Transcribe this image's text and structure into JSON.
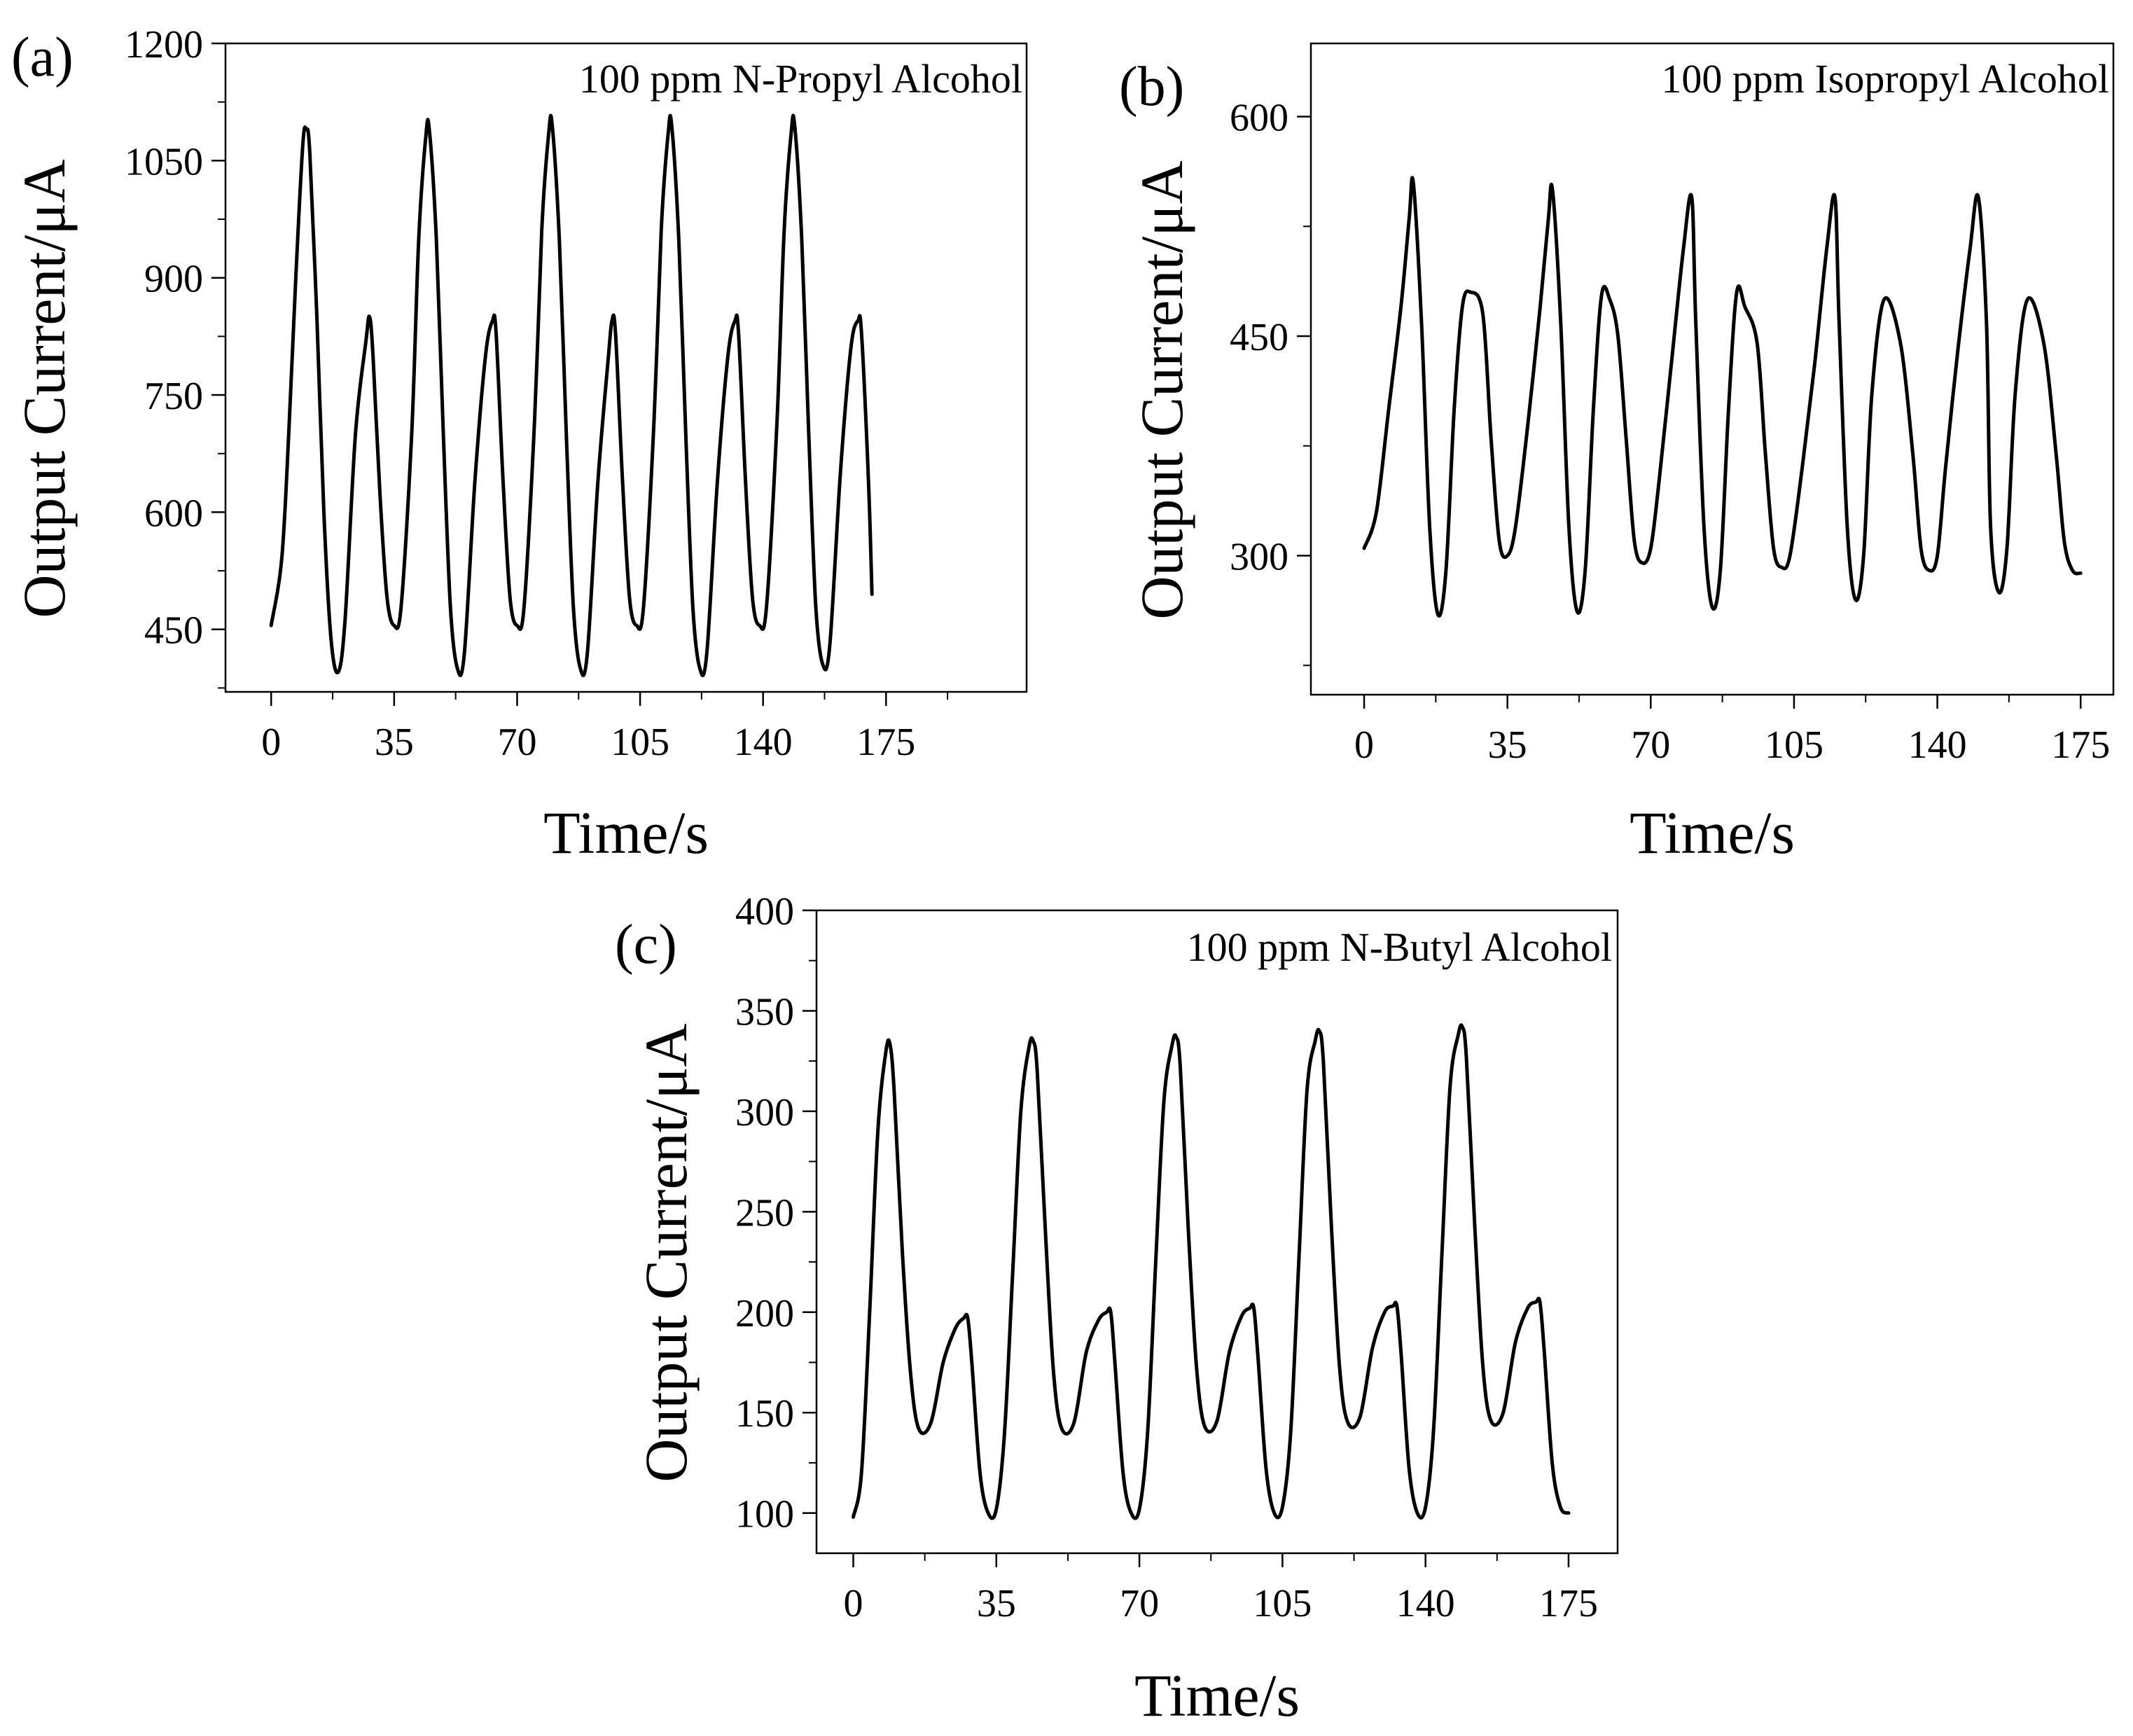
{
  "figure": {
    "description_color": "#000000",
    "background": "#ffffff"
  },
  "chart_data": [
    {
      "type": "line",
      "panel_label": "(a)",
      "annotation": "100 ppm N-Propyl Alcohol",
      "xlabel": "Time/s",
      "ylabel": "Output Current/μA",
      "xlim": [
        -13,
        215
      ],
      "ylim": [
        370,
        1200
      ],
      "xticks": [
        0,
        35,
        70,
        105,
        140,
        175
      ],
      "xtick_labels": [
        "0",
        "35",
        "70",
        "105",
        "140",
        "175"
      ],
      "yticks": [
        450,
        600,
        750,
        900,
        1050,
        1200
      ],
      "ytick_labels": [
        "450",
        "600",
        "750",
        "900",
        "1050",
        "1200"
      ],
      "line_color": "#000000",
      "series": [
        {
          "name": "100 ppm N-Propyl Alcohol",
          "x": [
            0,
            3,
            5,
            7,
            9,
            10,
            11,
            13,
            15,
            17,
            19,
            21,
            24,
            27,
            28,
            29,
            31,
            33,
            35,
            37,
            40,
            42,
            44,
            45,
            47,
            49,
            51,
            53,
            55,
            58,
            61,
            63,
            64,
            66,
            68,
            70,
            72,
            75,
            77,
            79,
            80,
            82,
            84,
            86,
            88,
            90,
            93,
            96,
            97,
            98,
            100,
            102,
            104,
            106,
            109,
            111,
            113,
            114,
            116,
            118,
            120,
            122,
            124,
            127,
            130,
            132,
            133,
            135,
            137,
            139,
            141,
            144,
            146,
            148,
            149,
            151,
            153,
            155,
            157,
            159,
            162,
            165,
            167,
            168,
            170,
            171
          ],
          "y": [
            455,
            540,
            700,
            900,
            1070,
            1090,
            1060,
            850,
            600,
            440,
            395,
            460,
            700,
            820,
            850,
            800,
            620,
            490,
            455,
            480,
            700,
            950,
            1080,
            1090,
            950,
            700,
            480,
            400,
            420,
            640,
            800,
            845,
            830,
            640,
            490,
            455,
            480,
            720,
            960,
            1085,
            1095,
            950,
            700,
            480,
            400,
            420,
            640,
            800,
            845,
            830,
            640,
            490,
            455,
            480,
            720,
            960,
            1085,
            1095,
            950,
            700,
            480,
            400,
            420,
            640,
            800,
            845,
            830,
            640,
            490,
            455,
            480,
            720,
            960,
            1085,
            1095,
            950,
            700,
            480,
            405,
            430,
            650,
            810,
            845,
            830,
            640,
            495
          ]
        }
      ]
    },
    {
      "type": "line",
      "panel_label": "(b)",
      "annotation": "100 ppm Isopropyl Alcohol",
      "xlabel": "Time/s",
      "ylabel": "Output Current/μA",
      "xlim": [
        -13,
        183
      ],
      "ylim": [
        205,
        650
      ],
      "xticks": [
        0,
        35,
        70,
        105,
        140,
        175
      ],
      "xtick_labels": [
        "0",
        "35",
        "70",
        "105",
        "140",
        "175"
      ],
      "yticks": [
        300,
        450,
        600
      ],
      "ytick_labels": [
        "300",
        "450",
        "600"
      ],
      "line_color": "#000000",
      "series": [
        {
          "name": "100 ppm Isopropyl Alcohol",
          "x": [
            0,
            3,
            6,
            9,
            11,
            12,
            14,
            16,
            18,
            20,
            22,
            24,
            26,
            29,
            31,
            33,
            35,
            37,
            40,
            43,
            45,
            46,
            48,
            50,
            52,
            54,
            56,
            58,
            60,
            62,
            64,
            66,
            68,
            70,
            72,
            75,
            78,
            80,
            81,
            83,
            85,
            87,
            89,
            91,
            93,
            96,
            98,
            100,
            102,
            104,
            107,
            110,
            113,
            115,
            116,
            118,
            120,
            122,
            124,
            127,
            131,
            134,
            136,
            138,
            140,
            142,
            145,
            148,
            150,
            152,
            153,
            155,
            157,
            159,
            162,
            166,
            169,
            171,
            173,
            175
          ],
          "y": [
            305,
            330,
            400,
            470,
            530,
            555,
            460,
            320,
            260,
            290,
            400,
            470,
            480,
            465,
            380,
            310,
            300,
            320,
            390,
            470,
            530,
            550,
            460,
            320,
            262,
            290,
            400,
            478,
            475,
            450,
            380,
            310,
            295,
            305,
            350,
            430,
            510,
            545,
            460,
            320,
            265,
            290,
            400,
            480,
            470,
            445,
            370,
            305,
            292,
            300,
            360,
            430,
            510,
            545,
            460,
            320,
            270,
            300,
            410,
            475,
            445,
            370,
            305,
            290,
            300,
            360,
            440,
            510,
            545,
            460,
            320,
            275,
            305,
            410,
            475,
            445,
            370,
            310,
            290,
            288
          ]
        }
      ]
    },
    {
      "type": "line",
      "panel_label": "(c)",
      "annotation": "100 ppm N-Butyl Alcohol",
      "xlabel": "Time/s",
      "ylabel": "Output Current/μA",
      "xlim": [
        -9,
        187
      ],
      "ylim": [
        80,
        400
      ],
      "xticks": [
        0,
        35,
        70,
        105,
        140,
        175
      ],
      "xtick_labels": [
        "0",
        "35",
        "70",
        "105",
        "140",
        "175"
      ],
      "yticks": [
        100,
        150,
        200,
        250,
        300,
        350,
        400
      ],
      "ytick_labels": [
        "100",
        "150",
        "200",
        "250",
        "300",
        "350",
        "400"
      ],
      "line_color": "#000000",
      "series": [
        {
          "name": "100 ppm N-Butyl Alcohol",
          "x": [
            0,
            2,
            4,
            6,
            8,
            9,
            10,
            12,
            14,
            16,
            19,
            22,
            25,
            27,
            28,
            29,
            31,
            33,
            35,
            37,
            39,
            41,
            43,
            44,
            45,
            47,
            49,
            51,
            54,
            57,
            60,
            62,
            63,
            64,
            66,
            68,
            70,
            72,
            74,
            76,
            78,
            79,
            80,
            82,
            84,
            86,
            89,
            92,
            95,
            97,
            98,
            99,
            101,
            103,
            105,
            107,
            109,
            111,
            113,
            114,
            115,
            117,
            119,
            121,
            124,
            127,
            130,
            132,
            133,
            134,
            136,
            138,
            140,
            142,
            144,
            146,
            148,
            149,
            150,
            152,
            154,
            156,
            159,
            162,
            165,
            167,
            168,
            169,
            171,
            173,
            175
          ],
          "y": [
            98,
            120,
            200,
            290,
            330,
            333,
            310,
            230,
            170,
            142,
            145,
            175,
            192,
            197,
            197,
            175,
            120,
            100,
            102,
            140,
            220,
            300,
            332,
            335,
            320,
            240,
            170,
            142,
            145,
            180,
            196,
            200,
            200,
            175,
            120,
            100,
            102,
            140,
            225,
            305,
            333,
            337,
            322,
            240,
            172,
            143,
            146,
            180,
            198,
            202,
            202,
            178,
            122,
            100,
            103,
            140,
            225,
            310,
            335,
            340,
            325,
            242,
            172,
            145,
            148,
            182,
            200,
            203,
            203,
            180,
            122,
            100,
            103,
            142,
            228,
            312,
            338,
            342,
            327,
            245,
            174,
            146,
            150,
            185,
            202,
            205,
            205,
            182,
            125,
            103,
            100
          ]
        }
      ]
    }
  ]
}
